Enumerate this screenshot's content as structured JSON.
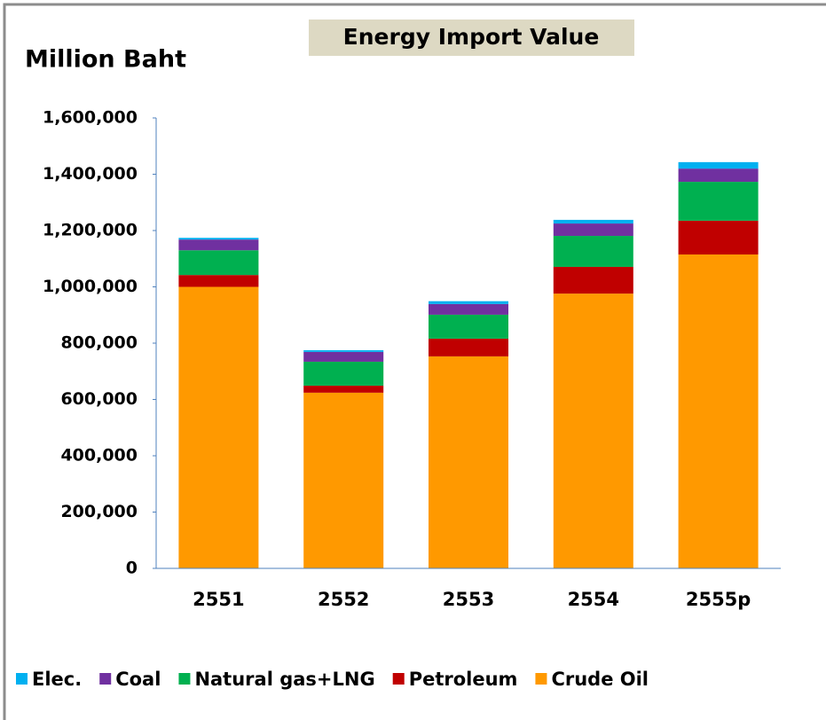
{
  "chart_data": {
    "type": "stacked_bar",
    "title": "Energy Import Value",
    "y_label": "Million Baht",
    "categories": [
      "2551",
      "2552",
      "2553",
      "2554",
      "2555p"
    ],
    "series": [
      {
        "name": "Crude Oil",
        "color": "#ff9900",
        "values": [
          1000000,
          624000,
          753000,
          976000,
          1115000
        ]
      },
      {
        "name": "Petroleum",
        "color": "#c00000",
        "values": [
          42000,
          25000,
          63000,
          95000,
          120000
        ]
      },
      {
        "name": "Natural gas+LNG",
        "color": "#00b050",
        "values": [
          88000,
          85000,
          85000,
          110000,
          138000
        ]
      },
      {
        "name": "Coal",
        "color": "#7030a0",
        "values": [
          38000,
          35000,
          38000,
          44000,
          47000
        ]
      },
      {
        "name": "Elec.",
        "color": "#00b0f0",
        "values": [
          6000,
          6000,
          10000,
          13000,
          23000
        ]
      }
    ],
    "ylim": [
      0,
      1600000
    ],
    "yticks": [
      0,
      {
        "value": 200000,
        "label": "200,000"
      },
      {
        "value": 400000,
        "label": "400,000"
      },
      {
        "value": 600000,
        "label": "600,000"
      },
      {
        "value": 800000,
        "label": "800,000"
      },
      {
        "value": 1000000,
        "label": "1,000,000"
      },
      {
        "value": 1200000,
        "label": "1,200,000"
      },
      {
        "value": 1400000,
        "label": "1,400,000"
      },
      {
        "value": 1600000,
        "label": "1,600,000"
      }
    ],
    "legend": "bottom"
  }
}
